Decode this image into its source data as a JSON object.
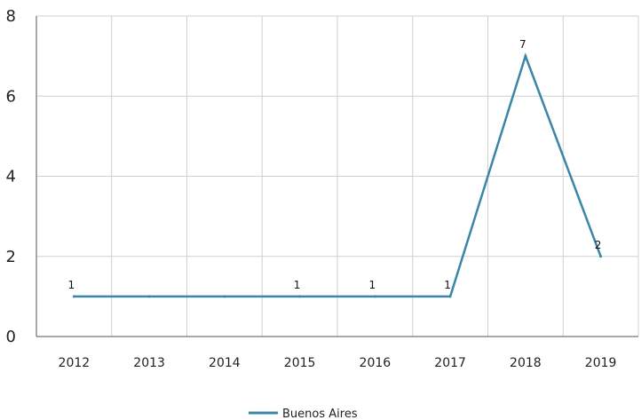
{
  "chart_data": {
    "type": "line",
    "categories": [
      "2012",
      "2013",
      "2014",
      "2015",
      "2016",
      "2017",
      "2018",
      "2019"
    ],
    "series": [
      {
        "name": "Buenos Aires",
        "color": "#3a86a8",
        "values": [
          1,
          1,
          1,
          1,
          1,
          1,
          7,
          2
        ],
        "data_labels": [
          {
            "category": "2012",
            "text": "1"
          },
          {
            "category": "2015",
            "text": "1"
          },
          {
            "category": "2016",
            "text": "1"
          },
          {
            "category": "2017",
            "text": "1"
          },
          {
            "category": "2018",
            "text": "7"
          },
          {
            "category": "2019",
            "text": "2"
          }
        ]
      }
    ],
    "y_ticks": [
      "0",
      "2",
      "4",
      "6",
      "8"
    ],
    "ylim": [
      0,
      8
    ],
    "grid": true,
    "legend": {
      "position": "bottom-center",
      "entries": [
        "Buenos Aires"
      ]
    },
    "gridline_color": "#d0d0d0"
  }
}
